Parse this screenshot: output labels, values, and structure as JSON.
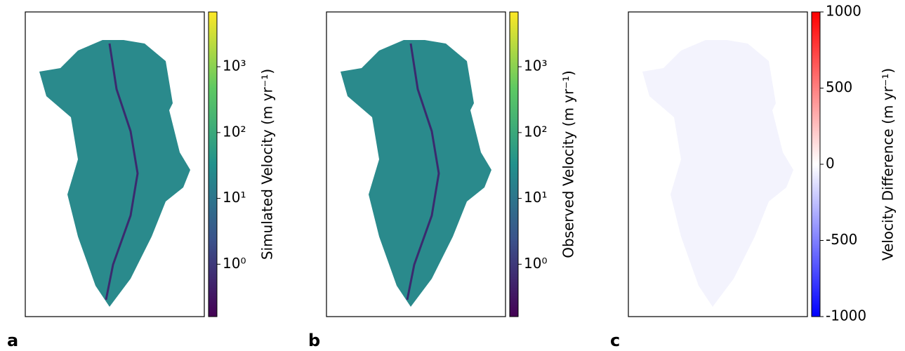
{
  "chart_data": [
    {
      "type": "map",
      "panel": "a",
      "colormap": "viridis",
      "log_scale": true,
      "colorbar_label": "Simulated Velocity (m yr⁻¹)",
      "clim": [
        0.16,
        6800
      ],
      "cticks": [
        {
          "value": 1,
          "label": "10⁰"
        },
        {
          "value": 10,
          "label": "10¹"
        },
        {
          "value": 100,
          "label": "10²"
        },
        {
          "value": 1000,
          "label": "10³"
        }
      ]
    },
    {
      "type": "map",
      "panel": "b",
      "colormap": "viridis",
      "log_scale": true,
      "colorbar_label": "Observed Velocity (m yr⁻¹)",
      "clim": [
        0.16,
        6800
      ],
      "cticks": [
        {
          "value": 1,
          "label": "10⁰"
        },
        {
          "value": 10,
          "label": "10¹"
        },
        {
          "value": 100,
          "label": "10²"
        },
        {
          "value": 1000,
          "label": "10³"
        }
      ]
    },
    {
      "type": "map",
      "panel": "c",
      "colormap": "bwr",
      "log_scale": false,
      "colorbar_label": "Velocity Difference (m yr⁻¹)",
      "clim": [
        -1000,
        1000
      ],
      "cticks": [
        -1000,
        -500,
        0,
        500,
        1000
      ]
    }
  ]
}
